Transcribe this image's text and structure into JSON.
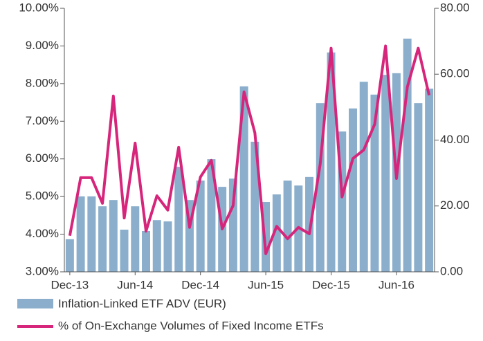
{
  "chart_data": {
    "type": "bar_line",
    "categories": [
      "Dec-13",
      null,
      null,
      null,
      null,
      null,
      "Jun-14",
      null,
      null,
      null,
      null,
      null,
      "Dec-14",
      null,
      null,
      null,
      null,
      null,
      "Jun-15",
      null,
      null,
      null,
      null,
      null,
      "Dec-15",
      null,
      null,
      null,
      null,
      null,
      "Jun-16",
      null,
      null,
      null
    ],
    "series": [
      {
        "name": "Inflation-Linked ETF ADV (EUR)",
        "color": "#8aaecb",
        "axis": "y2",
        "values": [
          9.9,
          22.9,
          22.9,
          19.9,
          21.8,
          12.8,
          19.9,
          12.4,
          15.7,
          15.3,
          31.9,
          21.8,
          27.7,
          34.2,
          25.8,
          28.3,
          56.3,
          39.5,
          21.2,
          23.5,
          27.7,
          26.2,
          28.8,
          51.2,
          66.6,
          42.6,
          49.6,
          57.7,
          53.8,
          59.8,
          60.3,
          70.8,
          51.2,
          55.6
        ]
      },
      {
        "name": "% of On-Exchange Volumes of Fixed Income ETFs",
        "color": "#d6267b",
        "axis": "y",
        "values": [
          3.96,
          5.5,
          5.5,
          4.82,
          7.67,
          4.43,
          6.42,
          4.08,
          5.02,
          4.64,
          6.31,
          4.18,
          5.52,
          5.96,
          4.14,
          4.76,
          7.78,
          6.69,
          3.48,
          4.21,
          3.88,
          4.18,
          4.01,
          5.87,
          8.94,
          4.99,
          6.01,
          6.24,
          6.92,
          9.0,
          5.48,
          7.91,
          8.94,
          7.69
        ]
      }
    ],
    "ylim": [
      3,
      10
    ],
    "yticks": [
      {
        "value": 3,
        "label": "3.00%"
      },
      {
        "value": 4,
        "label": "4.00%"
      },
      {
        "value": 5,
        "label": "5.00%"
      },
      {
        "value": 6,
        "label": "6.00%"
      },
      {
        "value": 7,
        "label": "7.00%"
      },
      {
        "value": 8,
        "label": "8.00%"
      },
      {
        "value": 9,
        "label": "9.00%"
      },
      {
        "value": 10,
        "label": "10.00%"
      }
    ],
    "y2lim": [
      0,
      80
    ],
    "y2ticks": [
      {
        "value": 0,
        "label": "0.00"
      },
      {
        "value": 20,
        "label": "20.00"
      },
      {
        "value": 40,
        "label": "40.00"
      },
      {
        "value": 60,
        "label": "60.00"
      },
      {
        "value": 80,
        "label": "80.00"
      }
    ]
  }
}
